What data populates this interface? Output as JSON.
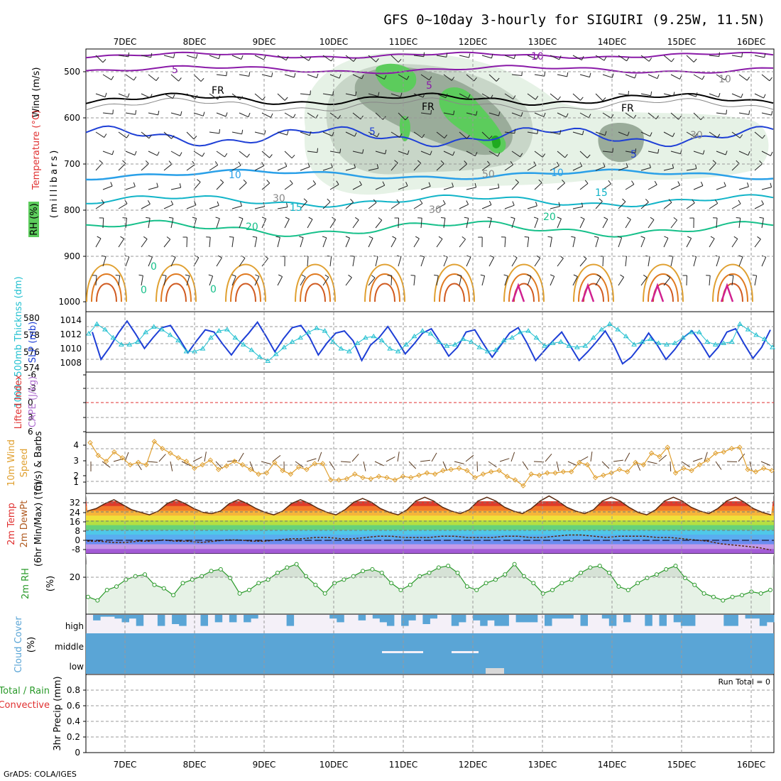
{
  "title": "GFS 0~10day 3-hourly for SIGUIRI (9.25W, 11.5N)",
  "credit": "GrADS: COLA/IGES",
  "x_axis": {
    "labels": [
      "7DEC",
      "8DEC",
      "9DEC",
      "10DEC",
      "11DEC",
      "12DEC",
      "13DEC",
      "14DEC",
      "15DEC",
      "16DEC"
    ]
  },
  "colors": {
    "rh_light": "#e6f2e6",
    "rh_mid": "#c8d6c8",
    "rh_dark": "#9aac9a",
    "rh_green": "#5ccc5c",
    "temp_purple": "#8a1aa8",
    "freeze": "#000000",
    "temp_blue": "#1e3fd6",
    "temp_cyan": "#11b4c8",
    "temp_teal": "#16c08a",
    "temp_orange": "#e0a030",
    "slp": "#1e3fd6",
    "thickness": "#22c0d0",
    "wind10": "#e0a030",
    "barb": "#5a3a20",
    "rh2m": "#2a9a2a",
    "cloud": "#5aa5d6",
    "cloud_bg": "#f4f0f8",
    "lifted": "#e03030",
    "cape": "#b070d0",
    "precip_total": "#2a9a2a",
    "precip_conv": "#e03030"
  },
  "panels": {
    "upper": {
      "y_label": "(millibars)",
      "label_wind": "Wind (m/s)",
      "label_temp": "Temperature (°C)",
      "label_rh": "RH (%)",
      "y_ticks": [
        "500",
        "600",
        "700",
        "800",
        "900",
        "1000"
      ],
      "contour_labels": [
        "10",
        "5",
        "5",
        "FR",
        "FR",
        "FR",
        "5",
        "5",
        "10",
        "10",
        "15",
        "15",
        "20",
        "20",
        "30",
        "30",
        "30",
        "50",
        "10",
        "0",
        "0",
        "0"
      ]
    },
    "slp": {
      "label_thickness": "1000~500mb Thicknss (dm)",
      "label_slp": "SLP (mb)",
      "left_ticks": [
        "580",
        "578",
        "576",
        "574"
      ],
      "right_ticks": [
        "1014",
        "1012",
        "1010",
        "1008"
      ]
    },
    "cape": {
      "label_lifted": "Lifted Index",
      "label_cape": "CAPE (J/kg)",
      "ticks": [
        "-6",
        "-3",
        "0",
        "3",
        "6"
      ]
    },
    "wind10": {
      "label_a": "10m Wind",
      "label_b": "Speed",
      "label_c": "(m/s) & Barbs",
      "ticks": [
        "4",
        "3",
        "2",
        "1"
      ]
    },
    "temp2m": {
      "label_a": "2m Temp",
      "label_b": "2m DewPt",
      "label_c": "(6hr Min/Max) (°C)",
      "ticks": [
        "32",
        "24",
        "16",
        "8",
        "0",
        "-8"
      ]
    },
    "rh2m": {
      "label_a": "2m RH",
      "label_b": "(%)",
      "ticks": [
        "20"
      ]
    },
    "cloud": {
      "label_a": "Cloud Cover",
      "label_b": "(%)",
      "levels": [
        "high",
        "middle",
        "low"
      ]
    },
    "precip": {
      "label_a": "Total / Rain",
      "label_b": "Convective",
      "label_c": "3hr Precip (mm)",
      "ticks": [
        "0.8",
        "0.6",
        "0.4",
        "0.2",
        "0"
      ],
      "run_total": "Run Total = 0"
    }
  },
  "chart_data": [
    {
      "type": "line",
      "name": "slp",
      "ylabel": "SLP (mb)",
      "ylim": [
        1006,
        1016
      ],
      "values": [
        1012.8,
        1007.8,
        1010.0,
        1012.6,
        1014.8,
        1012.4,
        1009.8,
        1011.8,
        1013.6,
        1014.0,
        1011.6,
        1009.0,
        1011.2,
        1013.2,
        1012.8,
        1010.6,
        1008.6,
        1010.8,
        1012.6,
        1014.6,
        1012.0,
        1009.2,
        1011.6,
        1013.6,
        1014.0,
        1011.8,
        1008.6,
        1010.8,
        1012.6,
        1013.0,
        1011.2,
        1007.6,
        1010.4,
        1011.8,
        1013.8,
        1011.4,
        1008.8,
        1010.6,
        1012.6,
        1013.4,
        1011.0,
        1008.4,
        1010.0,
        1012.8,
        1013.2,
        1010.6,
        1008.2,
        1010.4,
        1012.6,
        1013.6,
        1010.8,
        1007.6,
        1009.4,
        1011.2,
        1012.8,
        1010.2,
        1007.6,
        1009.2,
        1011.0,
        1013.0,
        1010.4,
        1007.0,
        1008.2,
        1010.2,
        1012.6,
        1010.4,
        1007.8,
        1009.6,
        1011.8,
        1013.0,
        1010.8,
        1008.2,
        1010.0,
        1012.8,
        1013.4,
        1010.6,
        1008.0,
        1010.0,
        1013.2
      ]
    },
    {
      "type": "line",
      "name": "thickness",
      "ylabel": "1000~500mb Thicknss (dm)",
      "ylim": [
        573,
        581
      ],
      "values": [
        578.2,
        579.6,
        578.8,
        577.6,
        576.6,
        576.6,
        577.0,
        578.4,
        579.2,
        578.8,
        578.0,
        577.2,
        575.6,
        575.6,
        576.0,
        577.6,
        578.6,
        578.8,
        577.6,
        576.6,
        575.8,
        574.8,
        574.2,
        575.2,
        576.2,
        577.0,
        577.6,
        578.4,
        579.0,
        578.6,
        577.0,
        576.0,
        575.6,
        576.8,
        577.6,
        577.8,
        577.2,
        576.0,
        575.6,
        576.6,
        577.8,
        578.6,
        578.2,
        577.0,
        576.4,
        576.6,
        577.4,
        577.0,
        576.2,
        575.6,
        575.8,
        577.2,
        577.6,
        578.4,
        578.6,
        577.6,
        576.4,
        576.8,
        577.0,
        576.4,
        576.2,
        576.4,
        577.6,
        578.8,
        579.6,
        578.8,
        577.8,
        576.6,
        577.0,
        577.4,
        576.8,
        576.6,
        576.8,
        577.6,
        578.4,
        578.4,
        577.0,
        576.6,
        576.8,
        577.0,
        579.6,
        578.8,
        578.0,
        577.4,
        576.2
      ]
    },
    {
      "type": "line",
      "name": "10m wind speed",
      "ylabel": "(m/s)",
      "ylim": [
        0,
        5
      ],
      "values": [
        4.3,
        3.2,
        2.7,
        3.5,
        3.0,
        2.4,
        2.6,
        2.4,
        4.4,
        3.8,
        3.4,
        3.0,
        2.7,
        2.1,
        2.4,
        2.8,
        2.0,
        2.3,
        2.7,
        2.4,
        2.0,
        1.6,
        1.7,
        2.6,
        1.9,
        1.6,
        2.2,
        2.0,
        2.5,
        2.5,
        1.1,
        1.1,
        1.2,
        1.6,
        1.3,
        1.2,
        1.4,
        1.3,
        1.1,
        1.4,
        1.3,
        1.5,
        1.7,
        1.6,
        1.9,
        2.0,
        2.1,
        1.9,
        1.3,
        1.6,
        1.8,
        1.9,
        1.4,
        1.1,
        0.6,
        1.6,
        1.5,
        1.7,
        1.7,
        1.8,
        1.8,
        2.6,
        2.4,
        1.3,
        1.5,
        1.7,
        2.0,
        1.8,
        2.6,
        2.4,
        3.4,
        3.1,
        3.9,
        1.7,
        2.1,
        1.9,
        2.4,
        2.8,
        3.4,
        3.5,
        3.8,
        3.9,
        2.0,
        1.8,
        2.1,
        1.9
      ]
    },
    {
      "type": "area",
      "name": "2m temperature",
      "ylabel": "(°C)",
      "ylim": [
        -12,
        36
      ],
      "values": [
        22,
        24,
        28,
        31,
        27,
        23,
        21,
        19,
        22,
        28,
        31,
        28,
        24,
        21,
        20,
        22,
        28,
        31,
        28,
        24,
        21,
        19,
        22,
        28,
        31,
        28,
        24,
        21,
        19,
        23,
        29,
        32,
        29,
        24,
        21,
        19,
        23,
        30,
        33,
        30,
        25,
        22,
        20,
        23,
        30,
        33,
        30,
        25,
        22,
        20,
        24,
        30,
        34,
        30,
        25,
        22,
        20,
        23,
        30,
        33,
        30,
        25,
        21,
        19,
        23,
        30,
        33,
        30,
        25,
        22,
        20,
        24,
        30,
        33,
        29,
        24,
        21,
        19
      ]
    },
    {
      "type": "line",
      "name": "2m dewpoint",
      "ylabel": "(°C)",
      "ylim": [
        -12,
        36
      ],
      "values": [
        -2,
        -2,
        -3,
        -3,
        -2,
        -2,
        -1,
        -2,
        -2,
        -3,
        -2,
        -1,
        -1,
        -2,
        -2,
        -1,
        0,
        0,
        1,
        1,
        0,
        0,
        1,
        2,
        2,
        1,
        1,
        1,
        2,
        2,
        1,
        1,
        1,
        2,
        2,
        1,
        1,
        2,
        3,
        3,
        2,
        1,
        2,
        2,
        2,
        1,
        1,
        0,
        -1,
        -2,
        -4,
        -5,
        -6,
        -7,
        -9
      ]
    },
    {
      "type": "area",
      "name": "2m RH",
      "ylabel": "(%)",
      "values": [
        10,
        8,
        14,
        16,
        20,
        22,
        23,
        17,
        15,
        11,
        18,
        20,
        22,
        25,
        26,
        21,
        12,
        14,
        18,
        20,
        24,
        27,
        29,
        22,
        17,
        12,
        18,
        20,
        22,
        25,
        26,
        24,
        18,
        14,
        17,
        22,
        24,
        27,
        28,
        24,
        16,
        14,
        18,
        20,
        23,
        29,
        22,
        18,
        12,
        14,
        18,
        20,
        24,
        27,
        28,
        24,
        16,
        14,
        18,
        21,
        23,
        26,
        28,
        21,
        17,
        12,
        10,
        8,
        10,
        11,
        13,
        12,
        14
      ]
    },
    {
      "type": "bar",
      "name": "high cloud cover",
      "ylabel": "(%)",
      "ylim": [
        0,
        100
      ],
      "values": [
        0,
        30,
        10,
        10,
        20,
        40,
        20,
        60,
        0,
        0,
        60,
        0,
        50,
        60,
        0,
        0,
        60,
        0,
        40,
        0,
        40,
        0,
        40,
        20,
        0,
        0,
        0,
        0,
        60,
        0,
        0,
        0,
        0,
        0,
        20,
        40,
        0,
        0,
        30,
        0,
        20,
        40,
        60,
        0,
        60,
        30,
        0,
        50,
        20,
        0,
        0,
        60,
        40,
        0,
        30,
        60,
        30,
        60,
        60,
        0,
        40,
        40,
        40,
        0,
        60,
        20,
        20,
        20,
        0,
        60,
        0,
        0,
        20,
        60,
        0,
        40,
        0,
        0,
        60,
        0,
        60,
        0,
        40,
        60,
        60,
        0,
        0,
        0,
        0,
        60,
        60,
        0,
        20,
        20,
        60,
        40
      ]
    },
    {
      "type": "bar",
      "name": "3hr precip",
      "ylabel": "3hr Precip (mm)",
      "ylim": [
        0,
        1.0
      ],
      "values": [
        0,
        0,
        0,
        0,
        0,
        0,
        0,
        0,
        0,
        0
      ]
    }
  ]
}
